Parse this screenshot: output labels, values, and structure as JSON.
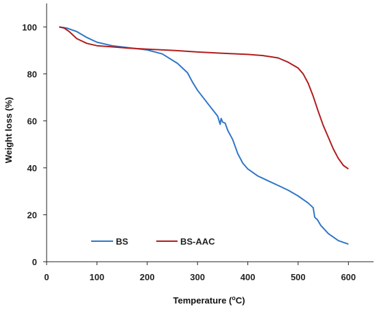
{
  "chart_data": {
    "type": "line",
    "xlabel": "Temperature (",
    "xlabel_unit": "o",
    "xlabel_unit_tail": "C)",
    "ylabel": "Weight loss (%)",
    "xlim": [
      0,
      650
    ],
    "ylim": [
      0,
      110
    ],
    "x_ticks": [
      0,
      100,
      200,
      300,
      400,
      500,
      600
    ],
    "y_ticks": [
      0,
      20,
      40,
      60,
      80,
      100
    ],
    "grid": false,
    "legend_position": "bottom-left",
    "series": [
      {
        "name": "BS",
        "color": "#2e75c8",
        "x": [
          25,
          40,
          60,
          80,
          100,
          130,
          160,
          200,
          230,
          260,
          280,
          290,
          300,
          320,
          340,
          345,
          347,
          350,
          355,
          360,
          370,
          380,
          390,
          400,
          420,
          440,
          460,
          480,
          500,
          520,
          530,
          533,
          535,
          538,
          545,
          560,
          580,
          600
        ],
        "y": [
          100,
          99.5,
          98,
          95.5,
          93.5,
          92,
          91.2,
          90.2,
          88.5,
          84.5,
          80.5,
          76.5,
          73,
          67.5,
          62,
          58.5,
          61,
          59.5,
          59,
          56,
          52,
          46,
          42,
          39.5,
          36.5,
          34.5,
          32.5,
          30.5,
          28,
          25,
          23,
          19,
          18.5,
          18,
          15.5,
          12,
          9,
          7.5
        ]
      },
      {
        "name": "BS-AAC",
        "color": "#b01c1c",
        "x": [
          25,
          35,
          45,
          60,
          80,
          100,
          130,
          160,
          200,
          250,
          300,
          350,
          400,
          430,
          460,
          480,
          500,
          510,
          520,
          530,
          540,
          550,
          560,
          570,
          580,
          590,
          600
        ],
        "y": [
          100,
          99.5,
          98,
          95,
          93,
          92,
          91.5,
          91,
          90.5,
          90,
          89.3,
          88.8,
          88.3,
          87.8,
          86.8,
          85,
          82.5,
          80,
          76,
          70.5,
          64,
          58,
          53,
          48,
          44,
          41,
          39.5
        ]
      }
    ]
  }
}
